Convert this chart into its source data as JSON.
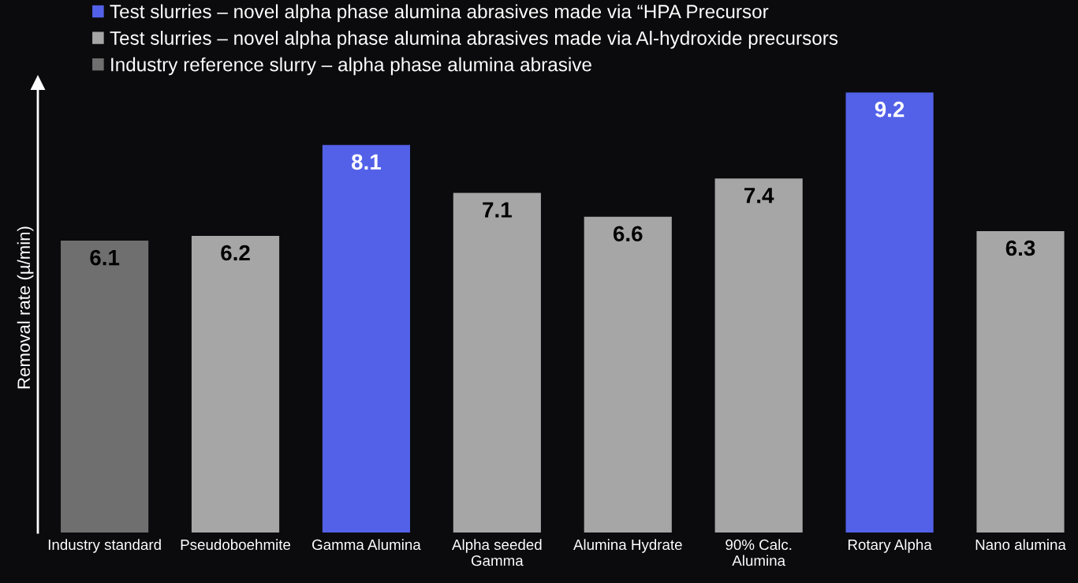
{
  "chart_data": {
    "type": "bar",
    "ylabel": "Removal rate (µ/min)",
    "categories": [
      "Industry standard",
      "Pseudoboehmite",
      "Gamma Alumina",
      "Alpha seeded\nGamma",
      "Alumina Hydrate",
      "90% Calc.\nAlumina",
      "Rotary Alpha",
      "Nano alumina"
    ],
    "series": [
      {
        "name": "Test slurries – novel alpha phase alumina abrasives made via “HPA Precursor",
        "color": "#5361e8",
        "values": [
          null,
          null,
          8.1,
          null,
          null,
          null,
          9.2,
          null
        ]
      },
      {
        "name": "Test slurries – novel alpha phase alumina abrasives made via Al-hydroxide precursors",
        "color": "#a6a6a6",
        "values": [
          null,
          6.2,
          null,
          7.1,
          6.6,
          7.4,
          null,
          6.3
        ]
      },
      {
        "name": "Industry reference slurry – alpha phase alumina abrasive",
        "color": "#6f6f6f",
        "values": [
          6.1,
          null,
          null,
          null,
          null,
          null,
          null,
          null
        ]
      }
    ],
    "relative": false,
    "ylim": [
      0,
      9.4
    ],
    "data_labels": true,
    "legend": "top",
    "grid": false,
    "tick_labels": "x"
  }
}
